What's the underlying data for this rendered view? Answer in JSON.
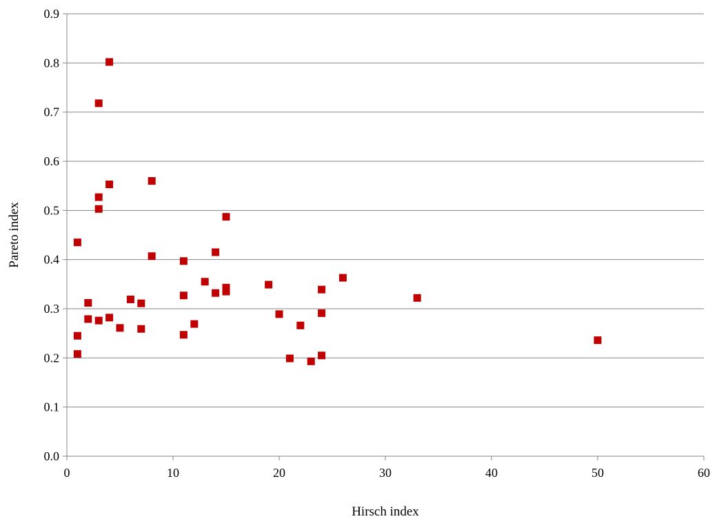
{
  "chart_data": {
    "type": "scatter",
    "title": "",
    "xlabel": "Hirsch index",
    "ylabel": "Pareto index",
    "xlim": [
      0,
      60
    ],
    "ylim": [
      0,
      0.9
    ],
    "x_ticks": [
      0,
      10,
      20,
      30,
      40,
      50,
      60
    ],
    "y_ticks": [
      0.0,
      0.1,
      0.2,
      0.3,
      0.4,
      0.5,
      0.6,
      0.7,
      0.8,
      0.9
    ],
    "x_tick_labels": [
      "0",
      "10",
      "20",
      "30",
      "40",
      "50",
      "60"
    ],
    "y_tick_labels": [
      "0.0",
      "0.1",
      "0.2",
      "0.3",
      "0.4",
      "0.5",
      "0.6",
      "0.7",
      "0.8",
      "0.9"
    ],
    "grid": {
      "horizontal": true,
      "vertical": false
    },
    "legend": "none",
    "marker": "square",
    "marker_color": "#c00000",
    "gridline_color": "#868686",
    "points": [
      {
        "x": 1,
        "y": 0.435
      },
      {
        "x": 1,
        "y": 0.245
      },
      {
        "x": 1,
        "y": 0.208
      },
      {
        "x": 2,
        "y": 0.312
      },
      {
        "x": 2,
        "y": 0.279
      },
      {
        "x": 3,
        "y": 0.718
      },
      {
        "x": 3,
        "y": 0.527
      },
      {
        "x": 3,
        "y": 0.503
      },
      {
        "x": 3,
        "y": 0.276
      },
      {
        "x": 4,
        "y": 0.802
      },
      {
        "x": 4,
        "y": 0.553
      },
      {
        "x": 4,
        "y": 0.282
      },
      {
        "x": 5,
        "y": 0.261
      },
      {
        "x": 6,
        "y": 0.319
      },
      {
        "x": 7,
        "y": 0.311
      },
      {
        "x": 7,
        "y": 0.259
      },
      {
        "x": 8,
        "y": 0.56
      },
      {
        "x": 8,
        "y": 0.407
      },
      {
        "x": 11,
        "y": 0.397
      },
      {
        "x": 11,
        "y": 0.327
      },
      {
        "x": 11,
        "y": 0.247
      },
      {
        "x": 12,
        "y": 0.269
      },
      {
        "x": 13,
        "y": 0.355
      },
      {
        "x": 14,
        "y": 0.415
      },
      {
        "x": 14,
        "y": 0.332
      },
      {
        "x": 15,
        "y": 0.487
      },
      {
        "x": 15,
        "y": 0.343
      },
      {
        "x": 15,
        "y": 0.335
      },
      {
        "x": 19,
        "y": 0.349
      },
      {
        "x": 20,
        "y": 0.289
      },
      {
        "x": 21,
        "y": 0.199
      },
      {
        "x": 22,
        "y": 0.266
      },
      {
        "x": 23,
        "y": 0.193
      },
      {
        "x": 24,
        "y": 0.339
      },
      {
        "x": 24,
        "y": 0.291
      },
      {
        "x": 24,
        "y": 0.205
      },
      {
        "x": 26,
        "y": 0.363
      },
      {
        "x": 33,
        "y": 0.322
      },
      {
        "x": 50,
        "y": 0.236
      }
    ]
  }
}
